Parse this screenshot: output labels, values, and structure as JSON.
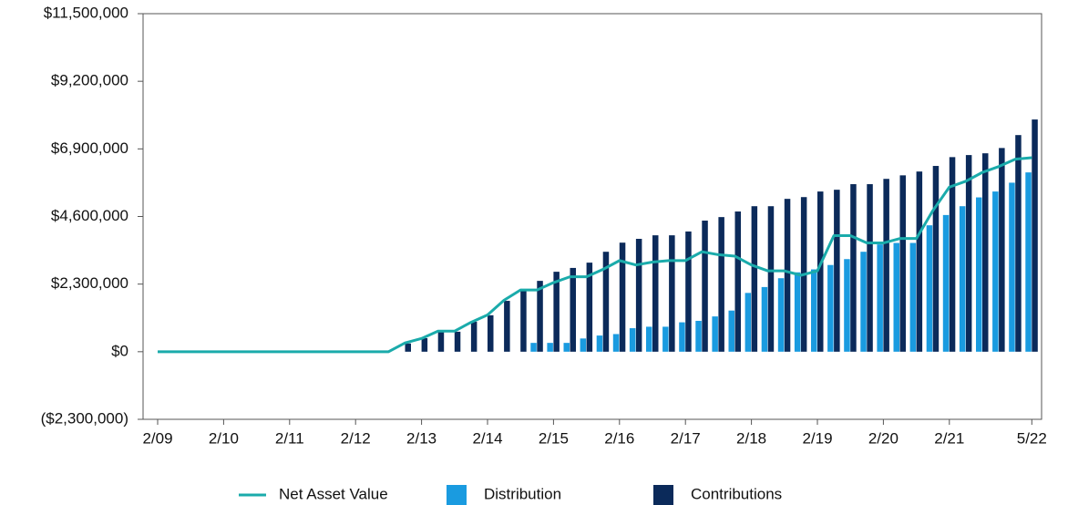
{
  "chart_data": {
    "type": "bar",
    "categories": [
      "2/09",
      null,
      null,
      null,
      "2/10",
      null,
      null,
      null,
      "2/11",
      null,
      null,
      null,
      "2/12",
      null,
      null,
      null,
      "2/13",
      null,
      null,
      null,
      "2/14",
      null,
      null,
      null,
      "2/15",
      null,
      null,
      null,
      "2/16",
      null,
      null,
      null,
      "2/17",
      null,
      null,
      null,
      "2/18",
      null,
      null,
      null,
      "2/19",
      null,
      null,
      null,
      "2/20",
      null,
      null,
      null,
      "2/21",
      null,
      null,
      null,
      null,
      "5/22"
    ],
    "series": [
      {
        "name": "Net Asset Value",
        "type": "line",
        "color": "#1aabab",
        "values": [
          0,
          0,
          0,
          0,
          0,
          0,
          0,
          0,
          0,
          0,
          0,
          0,
          0,
          0,
          0,
          300000,
          450000,
          700000,
          700000,
          1000000,
          1250000,
          1750000,
          2100000,
          2100000,
          2350000,
          2550000,
          2550000,
          2800000,
          3100000,
          2950000,
          3050000,
          3100000,
          3100000,
          3400000,
          3300000,
          3250000,
          2950000,
          2750000,
          2750000,
          2600000,
          2750000,
          3950000,
          3950000,
          3700000,
          3700000,
          3850000,
          3850000,
          4800000,
          5600000,
          5800000,
          6100000,
          6300000,
          6550000,
          6600000
        ]
      },
      {
        "name": "Distribution",
        "type": "bar",
        "color": "#1a9be0",
        "values": [
          0,
          0,
          0,
          0,
          0,
          0,
          0,
          0,
          0,
          0,
          0,
          0,
          0,
          0,
          0,
          0,
          0,
          0,
          0,
          0,
          0,
          0,
          0,
          300000,
          300000,
          300000,
          450000,
          550000,
          600000,
          800000,
          850000,
          850000,
          1000000,
          1050000,
          1200000,
          1400000,
          2000000,
          2200000,
          2500000,
          2700000,
          2800000,
          2950000,
          3150000,
          3400000,
          3650000,
          3700000,
          3700000,
          4300000,
          4650000,
          4950000,
          5250000,
          5450000,
          5750000,
          6100000
        ]
      },
      {
        "name": "Contributions",
        "type": "bar",
        "color": "#0b2a5a",
        "values": [
          0,
          0,
          0,
          0,
          0,
          0,
          0,
          0,
          0,
          0,
          0,
          0,
          0,
          0,
          0,
          280000,
          460000,
          680000,
          680000,
          1020000,
          1240000,
          1730000,
          2100000,
          2410000,
          2720000,
          2850000,
          3030000,
          3400000,
          3710000,
          3840000,
          3960000,
          3960000,
          4090000,
          4460000,
          4580000,
          4770000,
          4950000,
          4950000,
          5200000,
          5260000,
          5450000,
          5510000,
          5700000,
          5700000,
          5880000,
          6000000,
          6130000,
          6320000,
          6620000,
          6690000,
          6750000,
          6930000,
          7370000,
          7900000
        ]
      }
    ],
    "ylim": [
      -2300000,
      11500000
    ],
    "yticks": [
      {
        "value": -2300000,
        "label": "($2,300,000)"
      },
      {
        "value": 0,
        "label": "$0"
      },
      {
        "value": 2300000,
        "label": "$2,300,000"
      },
      {
        "value": 4600000,
        "label": "$4,600,000"
      },
      {
        "value": 6900000,
        "label": "$6,900,000"
      },
      {
        "value": 9200000,
        "label": "$9,200,000"
      },
      {
        "value": 11500000,
        "label": "$11,500,000"
      }
    ],
    "legend": "bottom"
  }
}
